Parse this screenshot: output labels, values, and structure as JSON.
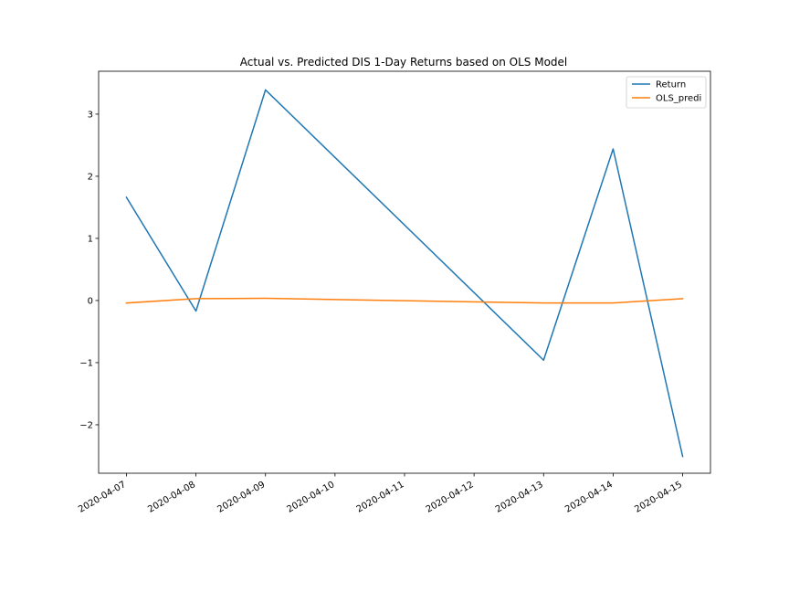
{
  "chart_data": {
    "type": "line",
    "title": "Actual vs. Predicted DIS 1-Day Returns based on OLS Model",
    "xlabel": "",
    "ylabel": "",
    "x_ticks": [
      "2020-04-07",
      "2020-04-08",
      "2020-04-09",
      "2020-04-10",
      "2020-04-11",
      "2020-04-12",
      "2020-04-13",
      "2020-04-14",
      "2020-04-15"
    ],
    "y_ticks": [
      "3",
      "2",
      "1",
      "0",
      "−1",
      "−2"
    ],
    "y_tick_values": [
      3,
      2,
      1,
      0,
      -1,
      -2
    ],
    "xlim": [
      "2020-04-06.6",
      "2020-04-15.4"
    ],
    "ylim": [
      -2.78,
      3.69
    ],
    "legend_position": "upper right",
    "grid": false,
    "series": [
      {
        "name": "Return",
        "color": "#1f77b4",
        "points": [
          {
            "x": "2020-04-07",
            "y": 1.66
          },
          {
            "x": "2020-04-08",
            "y": -0.17
          },
          {
            "x": "2020-04-09",
            "y": 3.39
          },
          {
            "x": "2020-04-13",
            "y": -0.96
          },
          {
            "x": "2020-04-14",
            "y": 2.44
          },
          {
            "x": "2020-04-15",
            "y": -2.51
          }
        ]
      },
      {
        "name": "OLS_predi",
        "color": "#ff7f0e",
        "points": [
          {
            "x": "2020-04-07",
            "y": -0.04
          },
          {
            "x": "2020-04-08",
            "y": 0.03
          },
          {
            "x": "2020-04-09",
            "y": 0.035
          },
          {
            "x": "2020-04-13",
            "y": -0.04
          },
          {
            "x": "2020-04-14",
            "y": -0.04
          },
          {
            "x": "2020-04-15",
            "y": 0.03
          }
        ]
      }
    ]
  }
}
